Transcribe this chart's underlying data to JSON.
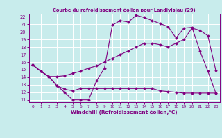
{
  "title": "Courbe du refroidissement éolien pour Landivisiau (29)",
  "xlabel": "Windchill (Refroidissement éolien,°C)",
  "bg_color": "#c8ecec",
  "line_color": "#800080",
  "grid_color": "#ffffff",
  "xlim": [
    -0.5,
    23.5
  ],
  "ylim": [
    10.7,
    22.4
  ],
  "xticks": [
    0,
    1,
    2,
    3,
    4,
    5,
    6,
    7,
    8,
    9,
    10,
    11,
    12,
    13,
    14,
    15,
    16,
    17,
    18,
    19,
    20,
    21,
    22,
    23
  ],
  "yticks": [
    11,
    12,
    13,
    14,
    15,
    16,
    17,
    18,
    19,
    20,
    21,
    22
  ],
  "line1_x": [
    0,
    1,
    2,
    3,
    4,
    5,
    6,
    7,
    8,
    9,
    10,
    11,
    12,
    13,
    14,
    15,
    16,
    17,
    18,
    19,
    20,
    21,
    22,
    23
  ],
  "line1_y": [
    15.6,
    14.8,
    14.1,
    12.9,
    12.0,
    11.0,
    11.0,
    11.0,
    13.5,
    15.2,
    20.9,
    21.5,
    21.3,
    22.2,
    21.9,
    21.5,
    21.1,
    20.7,
    19.2,
    20.5,
    20.6,
    17.5,
    14.8,
    11.9
  ],
  "line2_x": [
    0,
    1,
    2,
    3,
    4,
    5,
    6,
    7,
    8,
    9,
    10,
    11,
    12,
    13,
    14,
    15,
    16,
    17,
    18,
    19,
    20,
    21,
    22,
    23
  ],
  "line2_y": [
    15.6,
    14.8,
    14.1,
    12.9,
    12.4,
    12.2,
    12.5,
    12.5,
    12.5,
    12.5,
    12.5,
    12.5,
    12.5,
    12.5,
    12.5,
    12.5,
    12.2,
    12.1,
    12.0,
    11.9,
    11.9,
    11.9,
    11.9,
    11.9
  ],
  "line3_x": [
    0,
    1,
    2,
    3,
    4,
    5,
    6,
    7,
    8,
    9,
    10,
    11,
    12,
    13,
    14,
    15,
    16,
    17,
    18,
    19,
    20,
    21,
    22,
    23
  ],
  "line3_y": [
    15.6,
    14.8,
    14.1,
    14.1,
    14.2,
    14.5,
    14.8,
    15.2,
    15.5,
    16.0,
    16.5,
    17.0,
    17.5,
    18.0,
    18.5,
    18.5,
    18.3,
    18.0,
    18.5,
    19.0,
    20.5,
    20.2,
    19.5,
    14.9
  ]
}
